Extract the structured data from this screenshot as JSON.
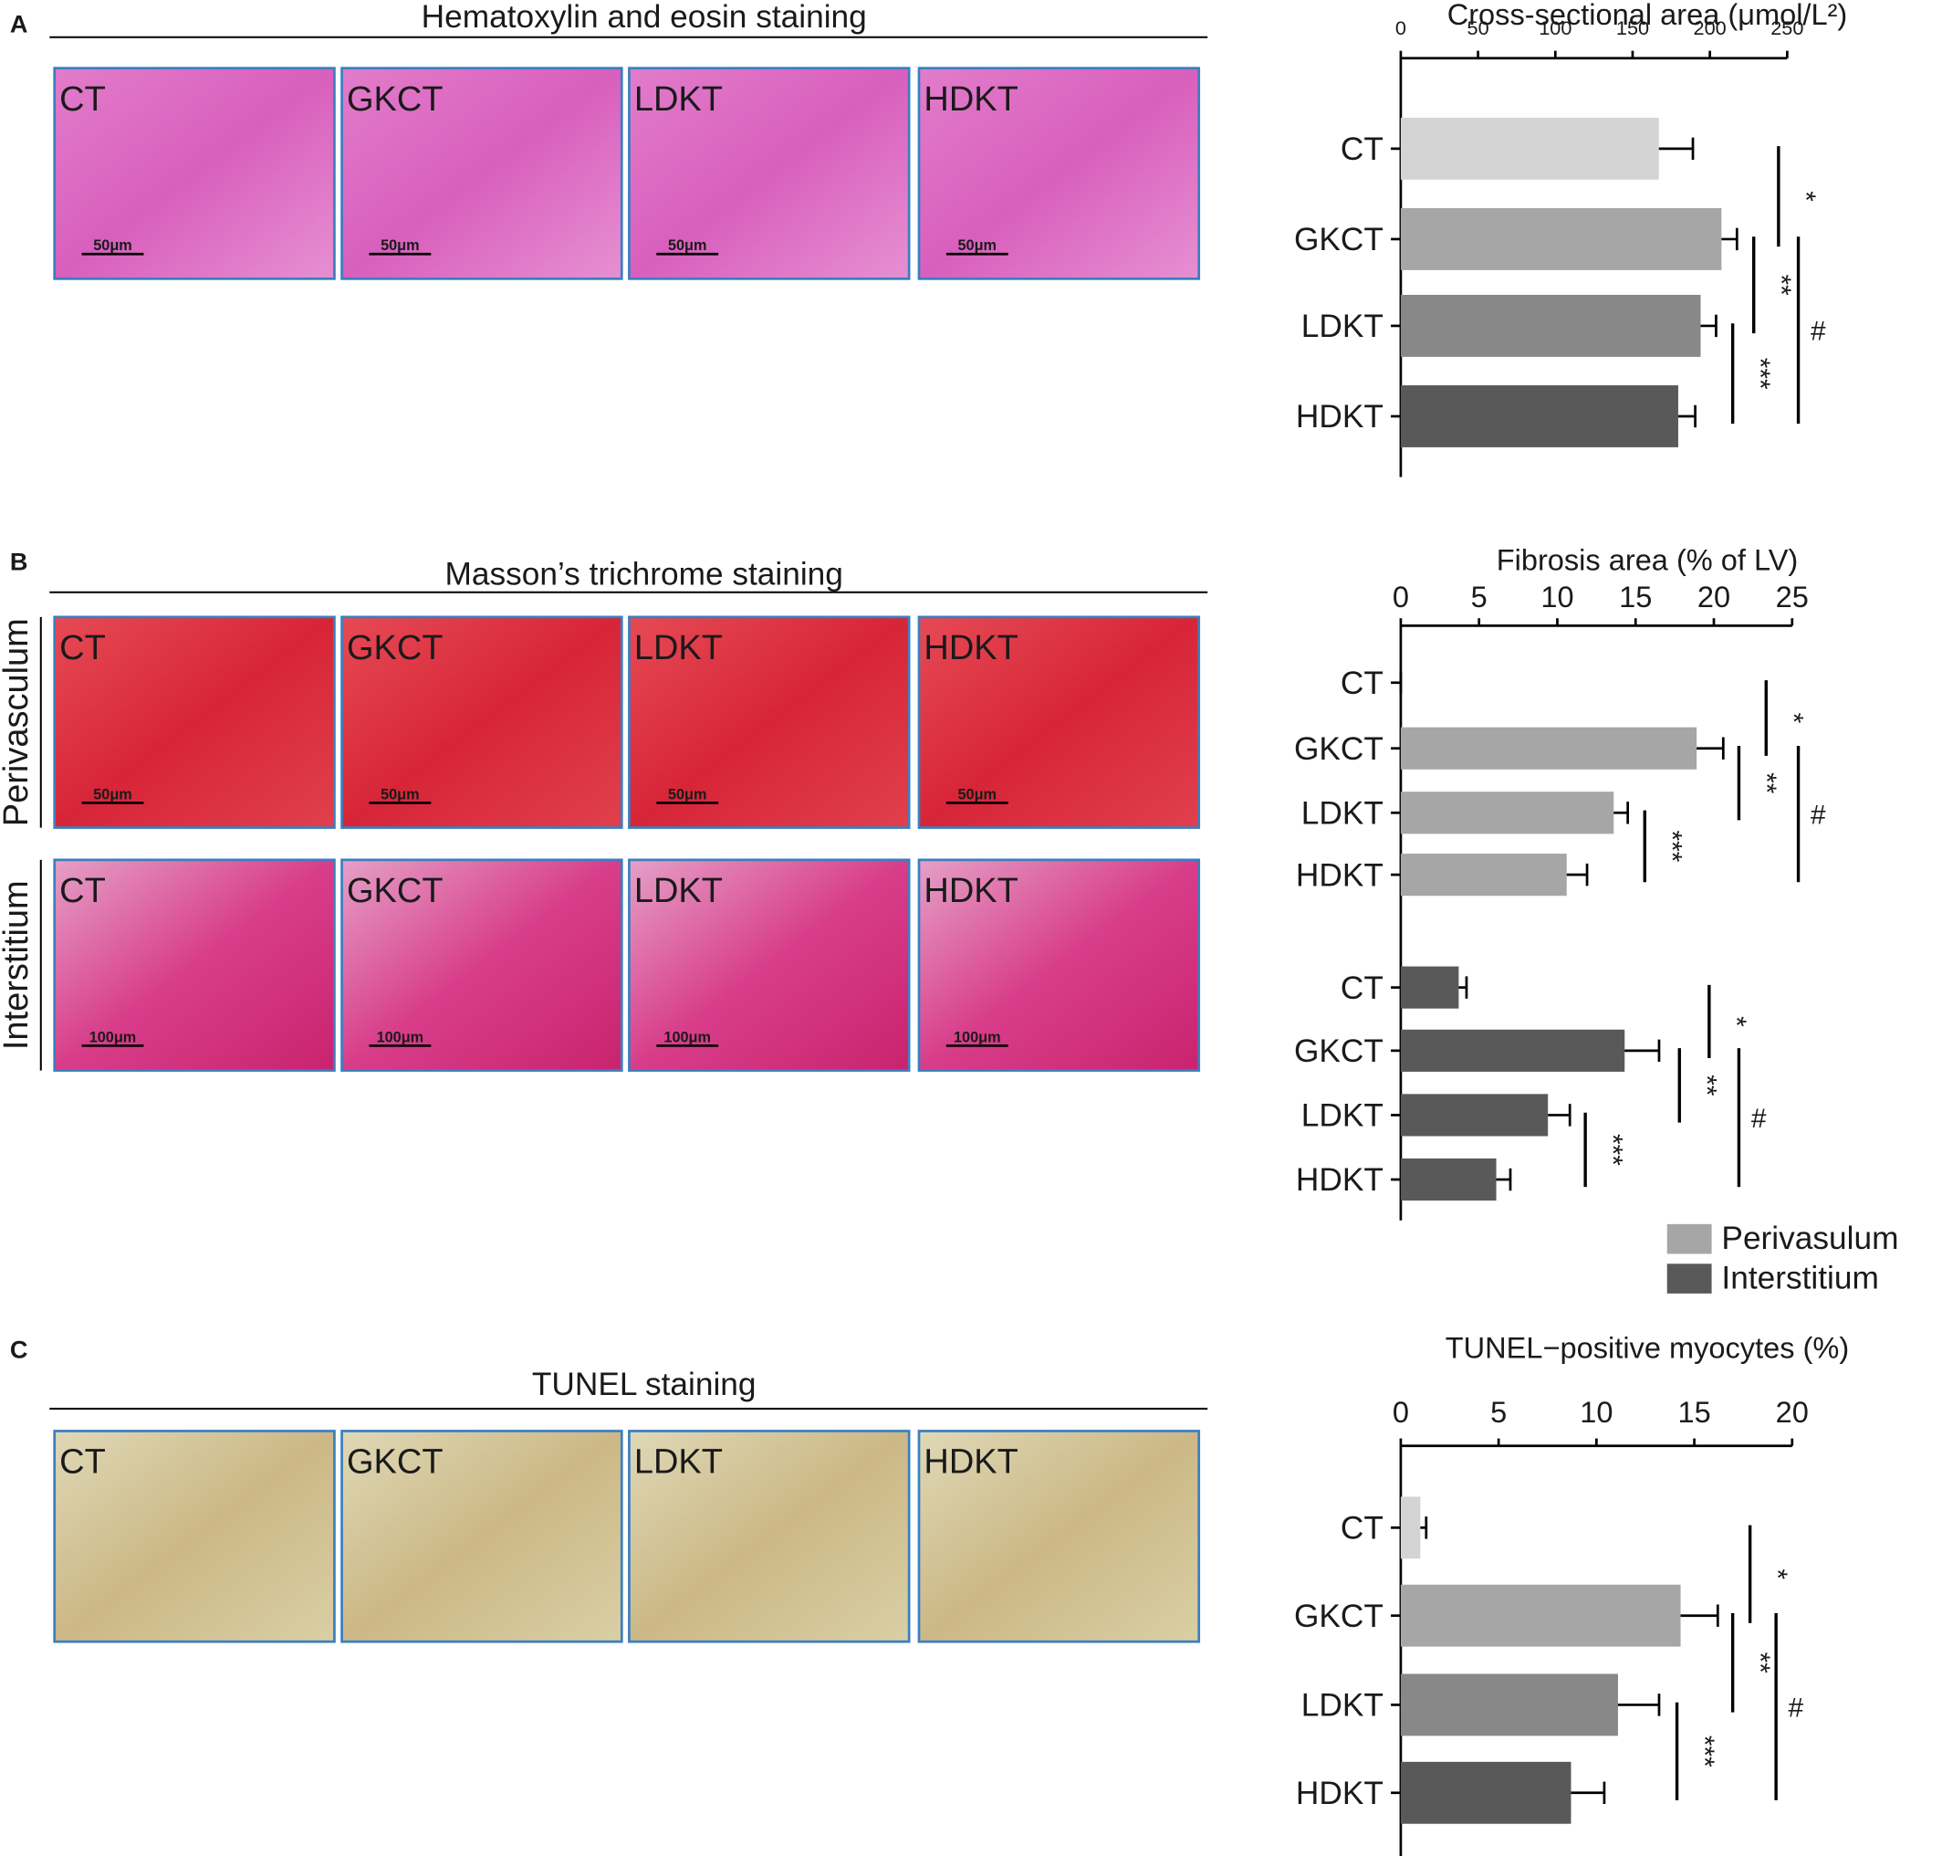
{
  "panels": [
    {
      "letter": "A",
      "title": "Hematoxylin and eosin  staining",
      "images": [
        {
          "label": "CT",
          "scale": "50μm"
        },
        {
          "label": "GKCT",
          "scale": "50μm"
        },
        {
          "label": "LDKT",
          "scale": "50μm"
        },
        {
          "label": "HDKT",
          "scale": "50μm"
        }
      ]
    },
    {
      "letter": "B",
      "title": "Masson’s trichrome staining",
      "rows": [
        {
          "label": "Perivasculum",
          "images": [
            {
              "label": "CT",
              "scale": "50μm"
            },
            {
              "label": "GKCT",
              "scale": "50μm"
            },
            {
              "label": "LDKT",
              "scale": "50μm"
            },
            {
              "label": "HDKT",
              "scale": "50μm"
            }
          ]
        },
        {
          "label": "Interstitium",
          "images": [
            {
              "label": "CT",
              "scale": "100μm"
            },
            {
              "label": "GKCT",
              "scale": "100μm"
            },
            {
              "label": "LDKT",
              "scale": "100μm"
            },
            {
              "label": "HDKT",
              "scale": "100μm"
            }
          ]
        }
      ]
    },
    {
      "letter": "C",
      "title": "TUNEL staining",
      "images": [
        {
          "label": "CT"
        },
        {
          "label": "GKCT"
        },
        {
          "label": "LDKT"
        },
        {
          "label": "HDKT"
        }
      ]
    }
  ],
  "chart_data": [
    {
      "type": "bar",
      "orientation": "horizontal",
      "title": "Cross-sectional area (μmol/L²)",
      "categories": [
        "CT",
        "GKCT",
        "LDKT",
        "HDKT"
      ],
      "values": [
        167,
        207.5,
        194,
        179.5
      ],
      "errors": [
        22,
        10,
        10,
        11
      ],
      "colors": [
        "#d4d4d4",
        "#a6a6a6",
        "#888888",
        "#595959"
      ],
      "xlim": [
        0,
        250
      ],
      "xticks": [
        0,
        50,
        100,
        150,
        200,
        250
      ],
      "annotations": [
        "*",
        "**",
        "***",
        "#"
      ]
    },
    {
      "type": "bar",
      "orientation": "horizontal",
      "title": "Fibrosis area (% of LV)",
      "categories": [
        "CT",
        "GKCT",
        "LDKT",
        "HDKT"
      ],
      "series": [
        {
          "name": "Perivasulum",
          "color": "#a6a6a6",
          "values": [
            0,
            18.9,
            13.6,
            10.6
          ],
          "errors": [
            0,
            1.7,
            0.9,
            1.3
          ]
        },
        {
          "name": "Interstitium",
          "color": "#595959",
          "values": [
            3.7,
            14.3,
            9.4,
            6.1
          ],
          "errors": [
            0.5,
            2.2,
            1.4,
            0.9
          ]
        }
      ],
      "xlim": [
        0,
        25
      ],
      "xticks": [
        0,
        5,
        10,
        15,
        20,
        25
      ],
      "annotations": [
        "*",
        "**",
        "***",
        "#"
      ]
    },
    {
      "type": "bar",
      "orientation": "horizontal",
      "title": "TUNEL−positive myocytes (%)",
      "categories": [
        "CT",
        "GKCT",
        "LDKT",
        "HDKT"
      ],
      "values": [
        1,
        14.3,
        11.1,
        8.7
      ],
      "errors": [
        0.3,
        1.9,
        2.1,
        1.7
      ],
      "colors": [
        "#d4d4d4",
        "#a6a6a6",
        "#888888",
        "#595959"
      ],
      "xlim": [
        0,
        20
      ],
      "xticks": [
        0,
        5,
        10,
        15,
        20
      ],
      "annotations": [
        "*",
        "**",
        "***",
        "#"
      ]
    }
  ]
}
